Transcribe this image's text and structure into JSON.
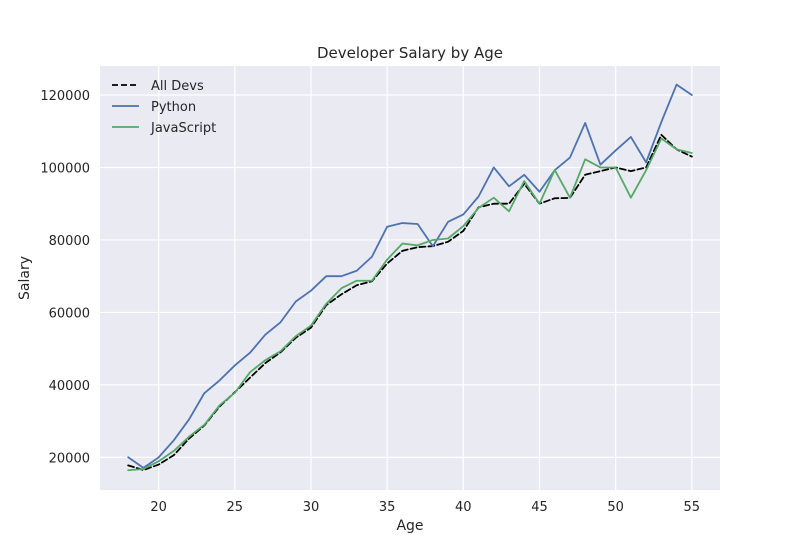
{
  "chart_data": {
    "type": "line",
    "title": "Developer Salary by Age",
    "xlabel": "Age",
    "ylabel": "Salary",
    "xlim": [
      16.15,
      56.85
    ],
    "ylim": [
      11000,
      128000
    ],
    "xticks": [
      20,
      25,
      30,
      35,
      40,
      45,
      50,
      55
    ],
    "yticks": [
      20000,
      40000,
      60000,
      80000,
      100000,
      120000
    ],
    "grid": true,
    "legend_position": "top-left",
    "background": "#eaeaf2",
    "x": [
      18,
      19,
      20,
      21,
      22,
      23,
      24,
      25,
      26,
      27,
      28,
      29,
      30,
      31,
      32,
      33,
      34,
      35,
      36,
      37,
      38,
      39,
      40,
      41,
      42,
      43,
      44,
      45,
      46,
      47,
      48,
      49,
      50,
      51,
      52,
      53,
      54,
      55
    ],
    "series": [
      {
        "name": "All Devs",
        "color": "#000000",
        "dashed": true,
        "values": [
          17784,
          16500,
          18012,
          20628,
          25206,
          28817,
          34037,
          37989,
          42000,
          46000,
          49000,
          53000,
          55800,
          62000,
          65000,
          67500,
          68600,
          73500,
          77000,
          78000,
          78300,
          79500,
          82500,
          89000,
          90000,
          90000,
          95500,
          90000,
          91500,
          91600,
          98000,
          99000,
          100000,
          99000,
          100000,
          109000,
          105000,
          103000
        ]
      },
      {
        "name": "Python",
        "color": "#4c72b0",
        "dashed": false,
        "values": [
          20046,
          17100,
          20000,
          24744,
          30500,
          37732,
          41247,
          45372,
          48876,
          53850,
          57287,
          63016,
          65998,
          70003,
          70000,
          71496,
          75370,
          83640,
          84666,
          84392,
          78254,
          85000,
          87038,
          91991,
          100000,
          94796,
          97962,
          93302,
          99240,
          102736,
          112285,
          100771,
          104708,
          108423,
          101407,
          112542,
          122870,
          120000
        ]
      },
      {
        "name": "JavaScript",
        "color": "#55a868",
        "dashed": false,
        "values": [
          16446,
          16791,
          18942,
          21780,
          25704,
          29000,
          34372,
          37810,
          43515,
          46823,
          49293,
          53437,
          56373,
          62375,
          66674,
          68745,
          68746,
          74583,
          79000,
          78508,
          79996,
          80403,
          83820,
          88833,
          91660,
          87892,
          96243,
          90000,
          99313,
          91660,
          102264,
          100000,
          100000,
          91660,
          99240,
          108000,
          105000,
          104000
        ]
      }
    ]
  }
}
